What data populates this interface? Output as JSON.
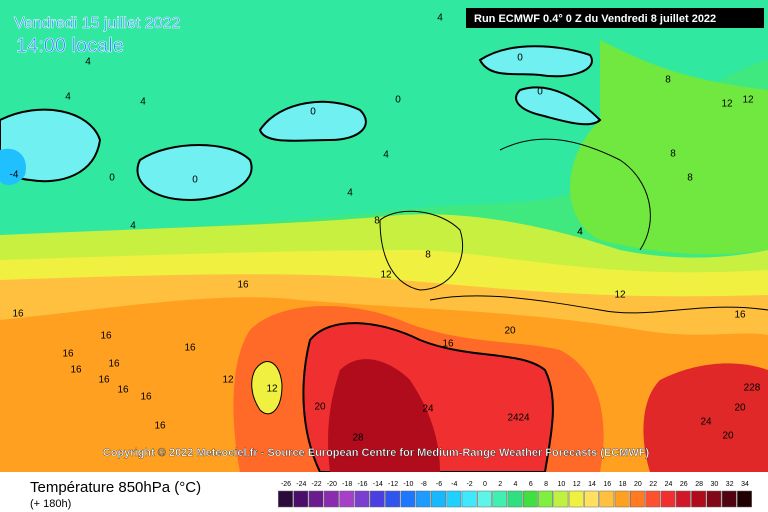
{
  "header": {
    "title": "Vendredi 15 juillet 2022",
    "subtitle": "14:00 locale",
    "run": "Run ECMWF 0.4° 0 Z du Vendredi 8 juillet 2022"
  },
  "copyright": "Copyright © 2022 Meteociel.fr - Source European Centre for Medium-Range Weather Forecasts (ECMWF)",
  "footer": {
    "parameter": "Température 850hPa (°C)",
    "lead": "(+ 180h)"
  },
  "legend": {
    "ticks": [
      -26,
      -24,
      -22,
      -20,
      -18,
      -16,
      -14,
      -12,
      -10,
      -8,
      -6,
      -4,
      -2,
      0,
      2,
      4,
      6,
      8,
      10,
      12,
      14,
      16,
      18,
      20,
      22,
      24,
      26,
      28,
      30,
      32,
      34
    ],
    "colors": [
      "#2d0a3c",
      "#4b0f6b",
      "#6a1c8f",
      "#8a2cb0",
      "#a640c8",
      "#7a3fd0",
      "#4a3fe0",
      "#2f55f0",
      "#1e78ff",
      "#1e9bff",
      "#18b8ff",
      "#20d0ff",
      "#40e8ff",
      "#5ef4e8",
      "#40f0b0",
      "#30e080",
      "#40e040",
      "#80f040",
      "#c0f040",
      "#f0f040",
      "#ffe060",
      "#ffc040",
      "#ffa020",
      "#ff7a20",
      "#ff5030",
      "#f03030",
      "#d01828",
      "#b00c1c",
      "#800818",
      "#500410",
      "#200000"
    ]
  },
  "contour_labels": [
    4,
    4,
    4,
    4,
    0,
    0,
    0,
    -4,
    0,
    0,
    0,
    4,
    4,
    4,
    4,
    8,
    8,
    8,
    12,
    12,
    8,
    12,
    12,
    16,
    16,
    16,
    16,
    16,
    16,
    12,
    12,
    16,
    20,
    16,
    20,
    24,
    24,
    24,
    28,
    16,
    16,
    16,
    16,
    228,
    20,
    24,
    20,
    16,
    8,
    4
  ]
}
